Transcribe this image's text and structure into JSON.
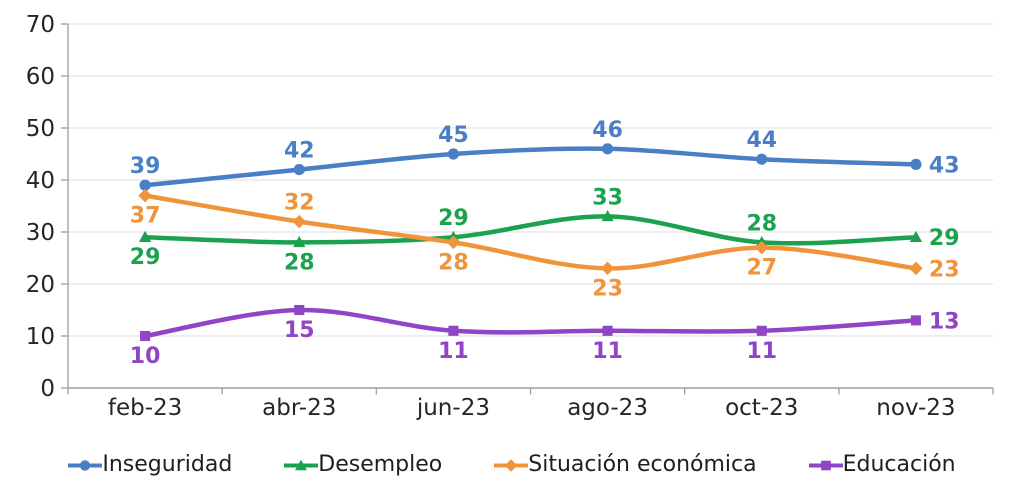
{
  "chart_data": {
    "type": "line",
    "title": "",
    "categories": [
      "feb-23",
      "abr-23",
      "jun-23",
      "ago-23",
      "oct-23",
      "nov-23"
    ],
    "series": [
      {
        "name": "Inseguridad",
        "color": "#4A7FC5",
        "marker": "circle",
        "values": [
          39,
          42,
          45,
          46,
          44,
          43
        ],
        "label_positions": [
          "above",
          "above",
          "above",
          "above",
          "above",
          "right"
        ]
      },
      {
        "name": "Desempleo",
        "color": "#1CA24F",
        "marker": "triangle",
        "values": [
          29,
          28,
          29,
          33,
          28,
          29
        ],
        "label_positions": [
          "below",
          "below",
          "above",
          "above",
          "above",
          "right"
        ]
      },
      {
        "name": "Situación económica",
        "color": "#F0943C",
        "marker": "diamond",
        "values": [
          37,
          32,
          28,
          23,
          27,
          23
        ],
        "label_positions": [
          "below",
          "above",
          "below",
          "below",
          "below",
          "right"
        ]
      },
      {
        "name": "Educación",
        "color": "#8F45C6",
        "marker": "square",
        "values": [
          10,
          15,
          11,
          11,
          11,
          13
        ],
        "label_positions": [
          "below",
          "below",
          "below",
          "below",
          "below",
          "right"
        ]
      }
    ],
    "ylim": [
      0,
      70
    ],
    "ytick_step": 10,
    "yticks": [
      "0",
      "10",
      "20",
      "30",
      "40",
      "50",
      "60",
      "70"
    ],
    "grid": true,
    "smooth": true,
    "legend_position": "bottom",
    "data_labels_shown": true
  },
  "colors": {
    "gridline": "#DEDEDE",
    "axis": "#9E9E9E",
    "tick_text": "#262626",
    "legend_text": "#1f1f1f",
    "background": "#ffffff"
  }
}
